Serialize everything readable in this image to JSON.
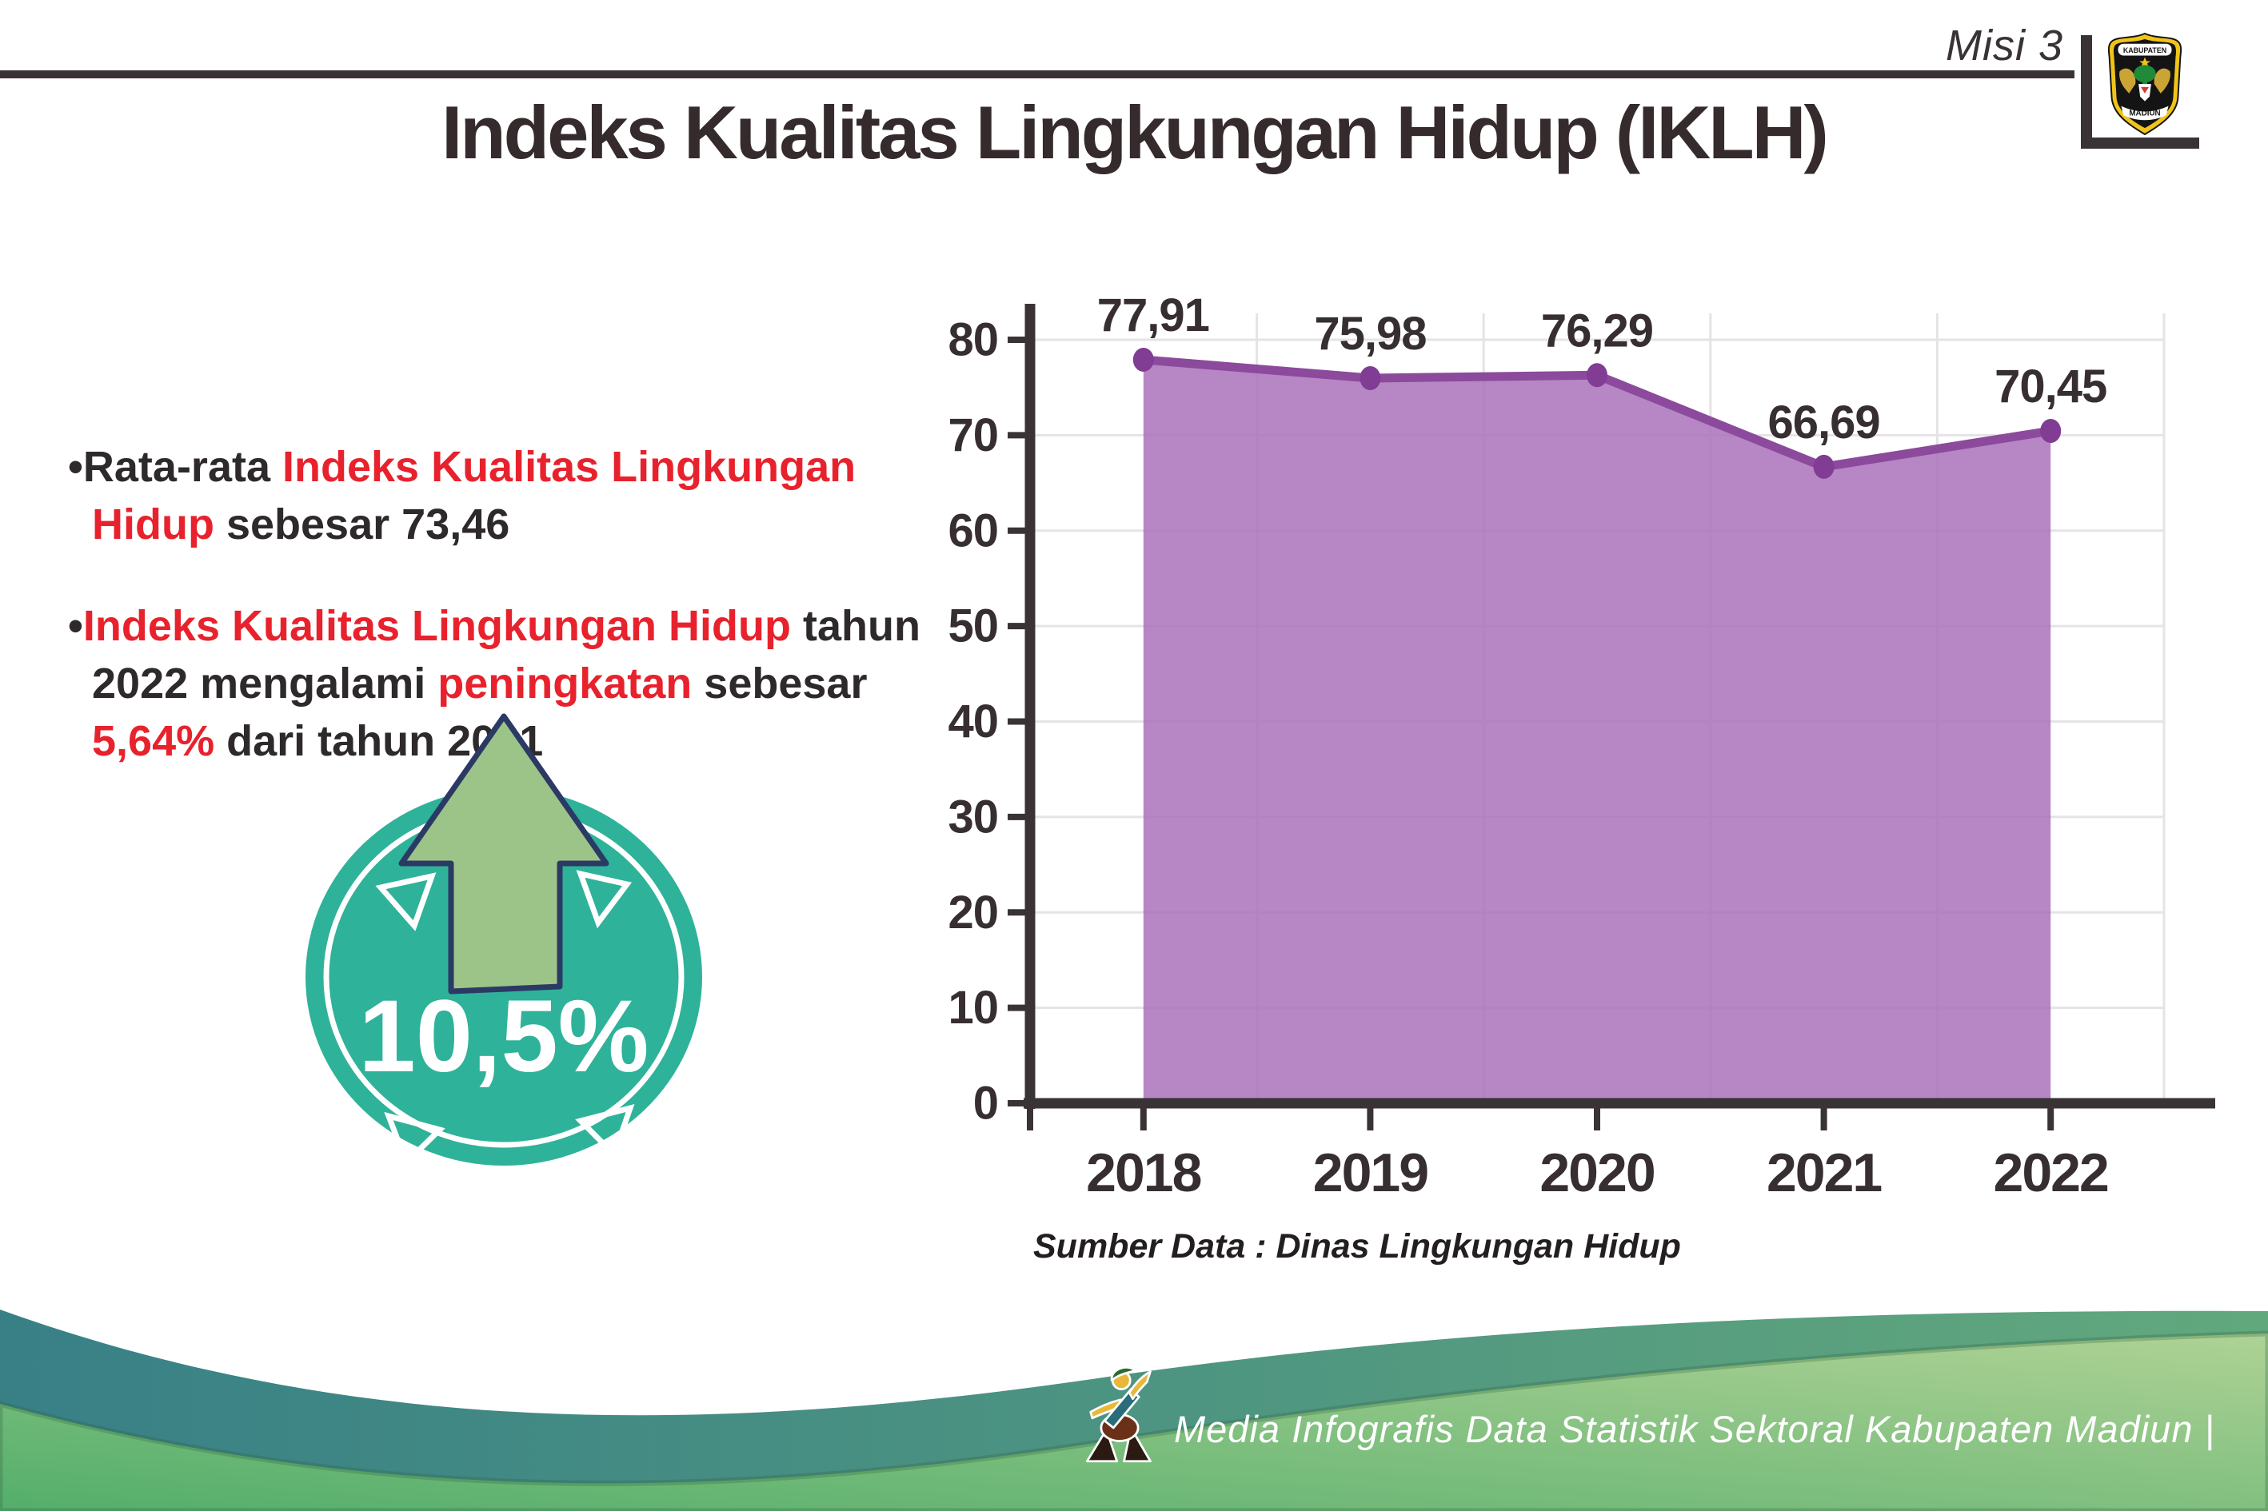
{
  "header": {
    "misi_label": "Misi 3",
    "title": "Indeks Kualitas Lingkungan Hidup (IKLH)",
    "logo": {
      "top_text": "KABUPATEN",
      "bottom_text": "MADIUN"
    }
  },
  "bullets": {
    "marker": "•",
    "items": [
      {
        "segments": [
          {
            "text": "Rata-rata ",
            "color": "dark"
          },
          {
            "text": "Indeks Kualitas Lingkungan Hidup",
            "color": "red"
          },
          {
            "text": " sebesar 73,46",
            "color": "dark"
          }
        ]
      },
      {
        "segments": [
          {
            "text": "Indeks Kualitas Lingkungan Hidup",
            "color": "red"
          },
          {
            "text": " tahun 2022 mengalami ",
            "color": "dark"
          },
          {
            "text": "peningkatan",
            "color": "red"
          },
          {
            "text": " sebesar ",
            "color": "dark"
          },
          {
            "text": "5,64%",
            "color": "red"
          },
          {
            "text": " dari tahun 2021",
            "color": "dark"
          }
        ]
      }
    ]
  },
  "badge": {
    "value": "10,5%",
    "circle_color": "#2fb29a",
    "arrow_color": "#9cc489",
    "outline_color": "#2b3a64"
  },
  "chart_data": {
    "type": "area",
    "title": "Indeks Kualitas Lingkungan Hidup (IKLH)",
    "categories": [
      "2018",
      "2019",
      "2020",
      "2021",
      "2022"
    ],
    "values": [
      77.91,
      75.98,
      76.29,
      66.69,
      70.45
    ],
    "value_labels": [
      "77,91",
      "75,98",
      "76,29",
      "66,69",
      "70,45"
    ],
    "xlabel": "",
    "ylabel": "",
    "ylim": [
      0,
      80
    ],
    "ytick_step": 10,
    "grid": true,
    "legend": "none",
    "area_color": "#a76cb8",
    "area_opacity": 0.82,
    "line_color": "#8c4a9c",
    "dot_color": "#813c93",
    "axis_color": "#3a3335",
    "grid_color": "#e6e3e4",
    "label_color": "#362e30",
    "source": "Sumber Data : Dinas Lingkungan Hidup"
  },
  "footer": {
    "credit": "Media Infografis Data Statistik Sektoral Kabupaten Madiun |",
    "teal_left": "#388086",
    "teal_right": "#62a87d",
    "green_left": "#54ae6b",
    "green_right": "#aed295"
  },
  "colors": {
    "accent_red": "#e8222d",
    "text_dark": "#2e292b",
    "rule_dark": "#3a3335"
  }
}
